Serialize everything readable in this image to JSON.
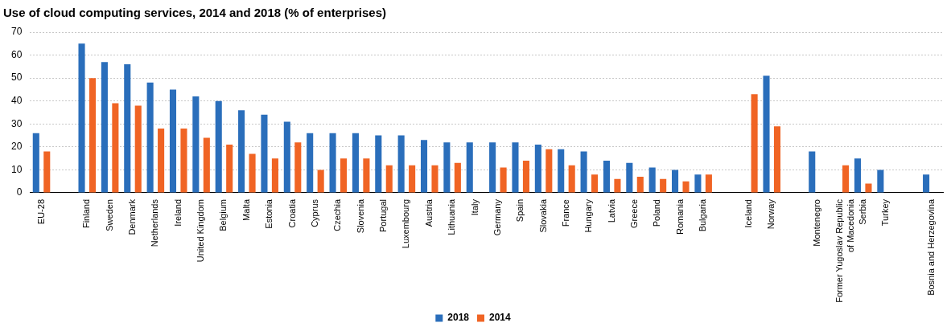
{
  "chart_data": {
    "type": "bar",
    "title": "Use of cloud computing services, 2014 and 2018 (% of enterprises)",
    "categories": [
      "EU-28",
      null,
      "Finland",
      "Sweden",
      "Denmark",
      "Netherlands",
      "Ireland",
      "United Kingdom",
      "Belgium",
      "Malta",
      "Estonia",
      "Croatia",
      "Cyprus",
      "Czechia",
      "Slovenia",
      "Portugal",
      "Luxembourg",
      "Austria",
      "Lithuania",
      "Italy",
      "Germany",
      "Spain",
      "Slovakia",
      "France",
      "Hungary",
      "Latvia",
      "Greece",
      "Poland",
      "Romania",
      "Bulgaria",
      null,
      "Iceland",
      "Norway",
      null,
      "Montenegro",
      "Former Yugoslav Republic of Macedonia",
      "Serbia",
      "Turkey",
      null,
      "Bosnia and Herzegovina"
    ],
    "series": [
      {
        "name": "2018",
        "color": "#2a6ebb",
        "values": [
          26,
          null,
          65,
          57,
          56,
          48,
          45,
          42,
          40,
          36,
          34,
          31,
          26,
          26,
          26,
          25,
          25,
          23,
          22,
          22,
          22,
          22,
          21,
          19,
          18,
          14,
          13,
          11,
          10,
          8,
          null,
          null,
          51,
          null,
          18,
          null,
          15,
          10,
          null,
          8
        ]
      },
      {
        "name": "2014",
        "color": "#f06424",
        "values": [
          18,
          null,
          50,
          39,
          38,
          28,
          28,
          24,
          21,
          17,
          15,
          22,
          10,
          15,
          15,
          12,
          12,
          12,
          13,
          null,
          11,
          14,
          19,
          12,
          8,
          6,
          7,
          6,
          5,
          8,
          null,
          43,
          29,
          null,
          null,
          12,
          4,
          null,
          null,
          null
        ]
      }
    ],
    "ylim": [
      0,
      70
    ],
    "yticks": [
      0,
      10,
      20,
      30,
      40,
      50,
      60,
      70
    ],
    "grid": "y",
    "legend": "bottom"
  }
}
